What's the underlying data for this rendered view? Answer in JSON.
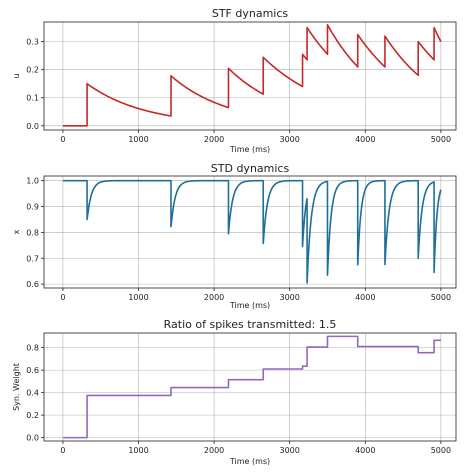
{
  "chart_data": [
    {
      "type": "line",
      "title": "STF dynamics",
      "xlabel": "Time (ms)",
      "ylabel": "u",
      "xlim": [
        -250,
        5200
      ],
      "ylim": [
        -0.015,
        0.37
      ],
      "xticks": [
        0,
        1000,
        2000,
        3000,
        4000,
        5000
      ],
      "yticks": [
        0.0,
        0.1,
        0.2,
        0.3
      ],
      "ytick_labels": [
        "0.0",
        "0.1",
        "0.2",
        "0.3"
      ],
      "grid": true,
      "color": "#c62828",
      "model": "facilitation",
      "spikes": [
        {
          "t": 320,
          "before": 0.0,
          "after": 0.15
        },
        {
          "t": 1430,
          "before": 0.035,
          "after": 0.178
        },
        {
          "t": 2190,
          "before": 0.065,
          "after": 0.205
        },
        {
          "t": 2650,
          "before": 0.113,
          "after": 0.244
        },
        {
          "t": 3170,
          "before": 0.14,
          "after": 0.255
        },
        {
          "t": 3230,
          "before": 0.235,
          "after": 0.35
        },
        {
          "t": 3500,
          "before": 0.255,
          "after": 0.36
        },
        {
          "t": 3900,
          "before": 0.21,
          "after": 0.325
        },
        {
          "t": 4260,
          "before": 0.21,
          "after": 0.32
        },
        {
          "t": 4700,
          "before": 0.18,
          "after": 0.3
        },
        {
          "t": 4910,
          "before": 0.235,
          "after": 0.35
        }
      ],
      "t_end": 5000,
      "end_value": 0.3
    },
    {
      "type": "line",
      "title": "STD dynamics",
      "xlabel": "Time (ms)",
      "ylabel": "x",
      "xlim": [
        -250,
        5200
      ],
      "ylim": [
        0.585,
        1.018
      ],
      "xticks": [
        0,
        1000,
        2000,
        3000,
        4000,
        5000
      ],
      "yticks": [
        0.6,
        0.7,
        0.8,
        0.9,
        1.0
      ],
      "ytick_labels": [
        "0.6",
        "0.7",
        "0.8",
        "0.9",
        "1.0"
      ],
      "grid": true,
      "color": "#1f6e9a",
      "model": "depression",
      "spikes": [
        {
          "t": 320,
          "before": 1.0,
          "after": 0.85
        },
        {
          "t": 1430,
          "before": 1.0,
          "after": 0.822
        },
        {
          "t": 2190,
          "before": 1.0,
          "after": 0.795
        },
        {
          "t": 2650,
          "before": 1.0,
          "after": 0.757
        },
        {
          "t": 3170,
          "before": 1.0,
          "after": 0.745
        },
        {
          "t": 3230,
          "before": 0.93,
          "after": 0.605
        },
        {
          "t": 3500,
          "before": 0.99,
          "after": 0.635
        },
        {
          "t": 3900,
          "before": 1.0,
          "after": 0.675
        },
        {
          "t": 4260,
          "before": 1.0,
          "after": 0.676
        },
        {
          "t": 4700,
          "before": 1.0,
          "after": 0.7
        },
        {
          "t": 4910,
          "before": 0.995,
          "after": 0.645
        }
      ],
      "t_end": 5000,
      "end_value": 0.965
    },
    {
      "type": "line",
      "title": "Ratio of spikes transmitted: 1.5",
      "xlabel": "Time (ms)",
      "ylabel": "Syn. Weight",
      "xlim": [
        -250,
        5200
      ],
      "ylim": [
        -0.03,
        0.93
      ],
      "xticks": [
        0,
        1000,
        2000,
        3000,
        4000,
        5000
      ],
      "yticks": [
        0.0,
        0.2,
        0.4,
        0.6,
        0.8
      ],
      "ytick_labels": [
        "0.0",
        "0.2",
        "0.4",
        "0.6",
        "0.8"
      ],
      "grid": true,
      "color": "#9467bd",
      "model": "step",
      "steps": [
        {
          "t": 0,
          "value": 0.0
        },
        {
          "t": 320,
          "value": 0.375
        },
        {
          "t": 1430,
          "value": 0.445
        },
        {
          "t": 2190,
          "value": 0.515
        },
        {
          "t": 2650,
          "value": 0.61
        },
        {
          "t": 3170,
          "value": 0.635
        },
        {
          "t": 3230,
          "value": 0.805
        },
        {
          "t": 3500,
          "value": 0.9
        },
        {
          "t": 3900,
          "value": 0.81
        },
        {
          "t": 4260,
          "value": 0.81
        },
        {
          "t": 4700,
          "value": 0.755
        },
        {
          "t": 4910,
          "value": 0.865
        }
      ],
      "t_end": 5000
    }
  ]
}
